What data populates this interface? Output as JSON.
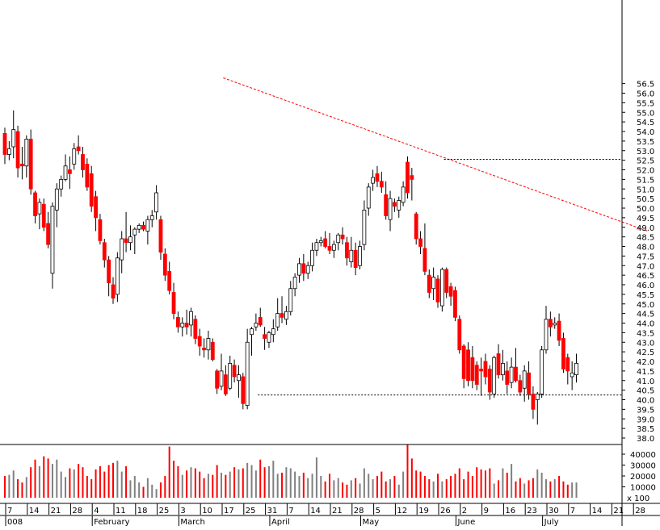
{
  "chart_data": {
    "type": "candlestick",
    "colors": {
      "up": "#ffffff",
      "down": "#ff0000",
      "outline": "#000000",
      "volume_up": "#808080",
      "volume_down": "#ff0000",
      "trendline": "#ff0000",
      "reference_line": "#000000"
    },
    "price_axis": {
      "position": "right",
      "ylim": [
        37.5,
        56.8
      ],
      "ticks": [
        38.0,
        38.5,
        39.0,
        39.5,
        40.0,
        40.5,
        41.0,
        41.5,
        42.0,
        42.5,
        43.0,
        43.5,
        44.0,
        44.5,
        45.0,
        45.5,
        46.0,
        46.5,
        47.0,
        47.5,
        48.0,
        48.5,
        49.0,
        49.5,
        50.0,
        50.5,
        51.0,
        51.5,
        52.0,
        52.5,
        53.0,
        53.5,
        54.0,
        54.5,
        55.0,
        55.5,
        56.0,
        56.5
      ]
    },
    "volume_axis": {
      "position": "right",
      "ylim": [
        0,
        46000
      ],
      "ticks": [
        10000,
        20000,
        30000,
        40000
      ],
      "scale_label": "x 100"
    },
    "x_axis": {
      "day_labels": [
        "7",
        "14",
        "21",
        "28",
        "4",
        "11",
        "18",
        "25",
        "3",
        "10",
        "17",
        "25",
        "31",
        "7",
        "14",
        "21",
        "28",
        "5",
        "12",
        "19",
        "26",
        "2",
        "9",
        "16",
        "23",
        "30",
        "7",
        "14",
        "21",
        "28"
      ],
      "month_labels": [
        {
          "label": "008",
          "day": 0
        },
        {
          "label": "February",
          "day": 20
        },
        {
          "label": "March",
          "day": 40
        },
        {
          "label": "April",
          "day": 61
        },
        {
          "label": "May",
          "day": 82
        },
        {
          "label": "June",
          "day": 104
        },
        {
          "label": "July",
          "day": 124
        }
      ]
    },
    "annotations": {
      "trendline": {
        "from": {
          "day": 51,
          "price": 56.8
        },
        "to": {
          "day": 149,
          "price": 48.8
        }
      },
      "horizontal_lines": [
        {
          "price": 52.55,
          "from_day": 102
        },
        {
          "price": 40.25,
          "from_day": 59
        }
      ]
    },
    "candles": [
      [
        53.9,
        54.2,
        52.3,
        52.8,
        20000
      ],
      [
        52.8,
        53.5,
        52.5,
        53.1,
        21000
      ],
      [
        53.2,
        55.1,
        52.6,
        54.1,
        25000
      ],
      [
        54.0,
        54.3,
        51.6,
        52.1,
        17000
      ],
      [
        52.3,
        53.2,
        51.5,
        52.2,
        14000
      ],
      [
        52.2,
        53.8,
        51.6,
        53.6,
        19000
      ],
      [
        53.6,
        54.1,
        50.7,
        51.0,
        28000
      ],
      [
        50.8,
        50.9,
        49.2,
        49.6,
        35000
      ],
      [
        49.7,
        50.5,
        48.9,
        50.3,
        29000
      ],
      [
        50.2,
        50.5,
        48.8,
        49.0,
        38000
      ],
      [
        49.2,
        49.8,
        47.9,
        48.1,
        36000
      ],
      [
        46.6,
        50.3,
        45.8,
        50.1,
        31000
      ],
      [
        49.9,
        51.3,
        49.0,
        51.0,
        35000
      ],
      [
        51.0,
        51.7,
        50.6,
        51.5,
        24000
      ],
      [
        51.5,
        52.8,
        51.4,
        52.2,
        19000
      ],
      [
        52.0,
        52.7,
        51.0,
        51.8,
        27000
      ],
      [
        52.3,
        53.4,
        52.0,
        53.1,
        26000
      ],
      [
        53.2,
        53.8,
        52.8,
        53.0,
        31000
      ],
      [
        52.8,
        53.2,
        51.6,
        52.0,
        28000
      ],
      [
        52.3,
        52.6,
        50.9,
        51.1,
        20000
      ],
      [
        51.8,
        52.2,
        49.8,
        50.1,
        17000
      ],
      [
        50.6,
        50.9,
        48.8,
        49.5,
        26000
      ],
      [
        49.4,
        49.7,
        48.1,
        48.3,
        29000
      ],
      [
        48.2,
        48.4,
        46.9,
        47.3,
        24000
      ],
      [
        47.3,
        47.5,
        45.4,
        46.1,
        30000
      ],
      [
        46.0,
        46.4,
        45.0,
        45.3,
        32000
      ],
      [
        45.5,
        47.7,
        45.1,
        47.4,
        34000
      ],
      [
        47.3,
        48.8,
        46.6,
        48.4,
        24000
      ],
      [
        48.4,
        49.8,
        47.7,
        48.2,
        29000
      ],
      [
        48.2,
        49.1,
        47.8,
        48.5,
        16000
      ],
      [
        48.6,
        49.0,
        47.6,
        48.9,
        20000
      ],
      [
        48.9,
        49.2,
        48.7,
        49.1,
        14000
      ],
      [
        49.1,
        49.3,
        48.8,
        48.9,
        10000
      ],
      [
        48.8,
        49.6,
        48.1,
        49.4,
        18000
      ],
      [
        49.4,
        49.9,
        49.0,
        49.6,
        12000
      ],
      [
        49.8,
        51.2,
        49.4,
        50.8,
        8000
      ],
      [
        49.4,
        49.6,
        47.3,
        47.7,
        14000
      ],
      [
        47.6,
        47.9,
        46.2,
        46.5,
        20000
      ],
      [
        46.7,
        47.2,
        45.5,
        45.7,
        47000
      ],
      [
        45.6,
        46.1,
        44.2,
        44.5,
        34000
      ],
      [
        44.3,
        44.6,
        43.5,
        43.8,
        29000
      ],
      [
        43.8,
        44.3,
        43.3,
        44.0,
        21000
      ],
      [
        44.0,
        44.7,
        43.4,
        43.8,
        25000
      ],
      [
        43.9,
        44.8,
        43.3,
        44.6,
        28000
      ],
      [
        44.2,
        44.4,
        42.9,
        43.2,
        27000
      ],
      [
        43.3,
        43.7,
        42.3,
        42.8,
        24000
      ],
      [
        42.7,
        43.2,
        42.2,
        42.6,
        18000
      ],
      [
        42.6,
        43.6,
        42.1,
        43.2,
        22000
      ],
      [
        43.0,
        43.2,
        42.0,
        42.1,
        21000
      ],
      [
        41.5,
        41.6,
        40.3,
        40.6,
        30000
      ],
      [
        40.7,
        42.4,
        40.5,
        41.5,
        23000
      ],
      [
        41.3,
        41.8,
        40.2,
        40.3,
        21000
      ],
      [
        40.6,
        42.3,
        40.5,
        41.9,
        24000
      ],
      [
        41.8,
        42.1,
        40.9,
        41.2,
        28000
      ],
      [
        41.0,
        41.8,
        40.1,
        41.3,
        26000
      ],
      [
        41.2,
        41.4,
        39.5,
        39.8,
        27000
      ],
      [
        39.7,
        43.7,
        39.5,
        43.0,
        32000
      ],
      [
        43.4,
        43.8,
        42.3,
        43.7,
        30000
      ],
      [
        43.8,
        44.5,
        43.6,
        44.0,
        25000
      ],
      [
        44.3,
        44.8,
        43.8,
        43.9,
        35000
      ],
      [
        43.4,
        43.8,
        42.6,
        43.2,
        28000
      ],
      [
        43.0,
        43.6,
        42.7,
        43.5,
        29000
      ],
      [
        43.4,
        44.2,
        43.0,
        43.7,
        34000
      ],
      [
        43.8,
        45.3,
        43.6,
        44.5,
        22000
      ],
      [
        44.5,
        45.4,
        44.0,
        44.3,
        23000
      ],
      [
        44.2,
        44.9,
        43.9,
        44.6,
        28000
      ],
      [
        44.6,
        46.2,
        44.4,
        45.8,
        27000
      ],
      [
        45.8,
        46.6,
        45.4,
        46.4,
        24000
      ],
      [
        46.5,
        47.4,
        46.1,
        47.1,
        20000
      ],
      [
        47.1,
        47.6,
        46.2,
        46.6,
        23000
      ],
      [
        46.6,
        47.2,
        46.3,
        47.0,
        18000
      ],
      [
        47.0,
        48.2,
        46.7,
        47.8,
        22000
      ],
      [
        47.8,
        48.4,
        47.5,
        48.2,
        37000
      ],
      [
        48.2,
        48.5,
        48.0,
        48.3,
        20000
      ],
      [
        48.4,
        48.8,
        47.9,
        48.0,
        15000
      ],
      [
        48.0,
        48.7,
        47.6,
        47.8,
        22000
      ],
      [
        47.8,
        48.3,
        47.4,
        48.1,
        16000
      ],
      [
        48.2,
        48.7,
        47.8,
        48.6,
        18000
      ],
      [
        48.6,
        49.0,
        48.1,
        48.4,
        14000
      ],
      [
        48.2,
        48.5,
        47.0,
        47.4,
        12000
      ],
      [
        47.2,
        48.5,
        46.9,
        47.8,
        16000
      ],
      [
        47.8,
        48.2,
        46.5,
        46.9,
        18000
      ],
      [
        47.0,
        48.3,
        46.8,
        48.0,
        13000
      ],
      [
        48.1,
        50.4,
        47.8,
        49.9,
        27000
      ],
      [
        50.0,
        51.3,
        49.6,
        51.1,
        22000
      ],
      [
        51.3,
        52.0,
        50.9,
        51.6,
        17000
      ],
      [
        51.8,
        52.2,
        51.1,
        51.4,
        20000
      ],
      [
        51.4,
        51.9,
        50.8,
        51.1,
        24000
      ],
      [
        50.7,
        51.4,
        49.4,
        49.6,
        15000
      ],
      [
        49.4,
        50.9,
        48.8,
        50.5,
        17000
      ],
      [
        50.3,
        50.5,
        49.8,
        50.1,
        20000
      ],
      [
        49.9,
        50.6,
        49.5,
        50.4,
        12000
      ],
      [
        50.3,
        51.4,
        50.1,
        51.1,
        24000
      ],
      [
        52.4,
        52.7,
        50.5,
        50.8,
        49000
      ],
      [
        51.7,
        52.1,
        50.4,
        51.5,
        36000
      ],
      [
        49.7,
        49.8,
        48.1,
        48.4,
        25000
      ],
      [
        48.4,
        48.8,
        47.6,
        48.0,
        24000
      ],
      [
        47.9,
        49.2,
        46.5,
        46.7,
        20000
      ],
      [
        46.5,
        46.8,
        45.3,
        45.6,
        17000
      ],
      [
        45.8,
        46.9,
        45.2,
        46.4,
        15000
      ],
      [
        46.3,
        46.5,
        44.8,
        45.1,
        22000
      ],
      [
        44.9,
        46.9,
        44.6,
        46.8,
        15000
      ],
      [
        46.8,
        46.9,
        45.3,
        45.6,
        17000
      ],
      [
        45.9,
        46.1,
        44.9,
        45.4,
        20000
      ],
      [
        45.7,
        45.9,
        44.1,
        44.3,
        22000
      ],
      [
        44.2,
        44.4,
        42.4,
        42.6,
        27000
      ],
      [
        42.8,
        42.9,
        40.6,
        41.1,
        17000
      ],
      [
        42.6,
        43.0,
        40.7,
        41.0,
        24000
      ],
      [
        42.2,
        42.8,
        40.6,
        41.0,
        20000
      ],
      [
        41.8,
        42.0,
        40.5,
        40.8,
        28000
      ],
      [
        41.6,
        42.2,
        40.2,
        41.5,
        26000
      ],
      [
        42.0,
        42.4,
        40.8,
        41.2,
        25000
      ],
      [
        41.6,
        41.8,
        40.0,
        40.4,
        27000
      ],
      [
        40.3,
        42.3,
        40.1,
        42.2,
        13000
      ],
      [
        42.4,
        42.9,
        41.1,
        41.3,
        16000
      ],
      [
        41.3,
        42.6,
        41.0,
        41.9,
        27000
      ],
      [
        41.5,
        42.0,
        40.3,
        40.8,
        23000
      ],
      [
        40.9,
        42.2,
        40.6,
        41.7,
        31000
      ],
      [
        41.7,
        42.7,
        40.9,
        41.0,
        15000
      ],
      [
        41.0,
        41.3,
        40.2,
        40.4,
        18000
      ],
      [
        40.6,
        41.8,
        39.9,
        41.5,
        13000
      ],
      [
        41.4,
        42.0,
        40.0,
        40.3,
        16000
      ],
      [
        40.3,
        40.7,
        39.0,
        39.5,
        18000
      ],
      [
        40.0,
        40.4,
        38.7,
        40.3,
        26000
      ],
      [
        40.3,
        42.8,
        40.1,
        42.6,
        23000
      ],
      [
        42.6,
        44.9,
        42.4,
        44.2,
        17000
      ],
      [
        44.2,
        44.6,
        43.3,
        43.8,
        15000
      ],
      [
        43.9,
        44.3,
        43.7,
        44.0,
        17000
      ],
      [
        44.1,
        44.5,
        42.8,
        43.1,
        20000
      ],
      [
        43.2,
        43.5,
        41.4,
        41.6,
        15000
      ],
      [
        42.2,
        42.4,
        40.8,
        41.5,
        12000
      ],
      [
        41.2,
        42.0,
        40.5,
        41.4,
        14000
      ],
      [
        41.3,
        42.4,
        40.9,
        41.9,
        14000
      ]
    ]
  }
}
